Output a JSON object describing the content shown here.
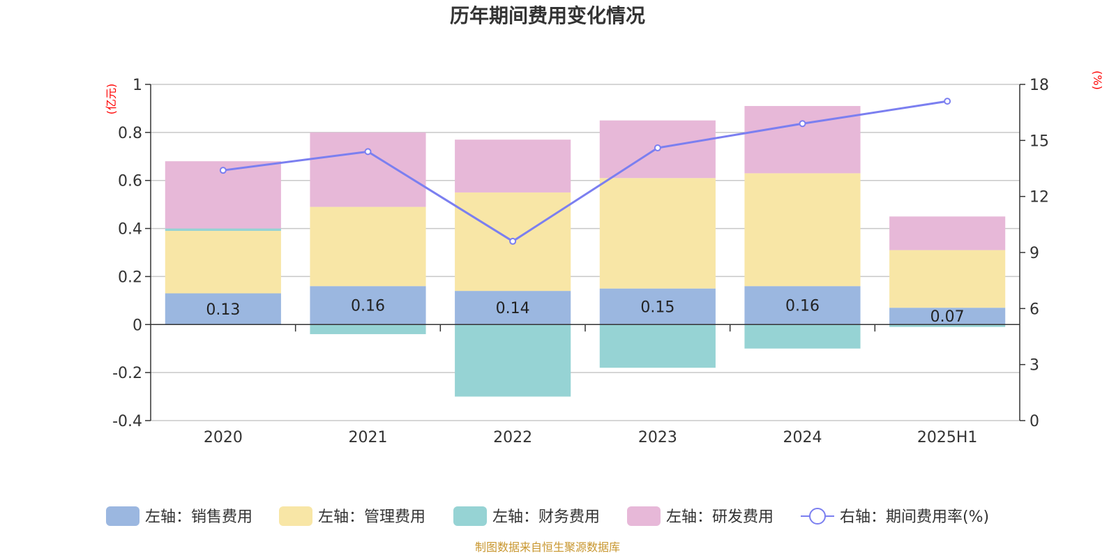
{
  "title": "历年期间费用变化情况",
  "left_unit": "(亿元)",
  "right_unit": "(%)",
  "source": "制图数据来自恒生聚源数据库",
  "colors": {
    "sales": "#9bb7e0",
    "admin": "#f8e6a6",
    "finance": "#96d3d4",
    "rd": "#e7b8d8",
    "rate_line": "#7b7ff0"
  },
  "chart_data": {
    "type": "bar",
    "stacked": true,
    "categories": [
      "2020",
      "2021",
      "2022",
      "2023",
      "2024",
      "2025H1"
    ],
    "left_axis": {
      "min": -0.4,
      "max": 1,
      "ticks": [
        "-0.4",
        "-0.2",
        "0",
        "0.2",
        "0.4",
        "0.6",
        "0.8",
        "1"
      ]
    },
    "right_axis": {
      "min": 0,
      "max": 18,
      "ticks": [
        "0",
        "3",
        "6",
        "9",
        "12",
        "15",
        "18"
      ]
    },
    "series": [
      {
        "name": "左轴：销售费用",
        "key": "sales",
        "axis": "left",
        "values": [
          0.13,
          0.16,
          0.14,
          0.15,
          0.16,
          0.07
        ],
        "labels": [
          "0.13",
          "0.16",
          "0.14",
          "0.15",
          "0.16",
          "0.07"
        ]
      },
      {
        "name": "左轴：管理费用",
        "key": "admin",
        "axis": "left",
        "values": [
          0.26,
          0.33,
          0.41,
          0.46,
          0.47,
          0.24
        ]
      },
      {
        "name": "左轴：财务费用",
        "key": "finance",
        "axis": "left",
        "values": [
          0.01,
          -0.04,
          -0.3,
          -0.18,
          -0.1,
          -0.01
        ]
      },
      {
        "name": "左轴：研发费用",
        "key": "rd",
        "axis": "left",
        "values": [
          0.28,
          0.31,
          0.22,
          0.24,
          0.28,
          0.14
        ]
      },
      {
        "name": "右轴：期间费用率(%)",
        "key": "rate_line",
        "axis": "right",
        "type": "line",
        "values": [
          13.4,
          14.4,
          9.6,
          14.6,
          15.9,
          17.1
        ]
      }
    ],
    "grid": true,
    "legend_position": "bottom"
  }
}
